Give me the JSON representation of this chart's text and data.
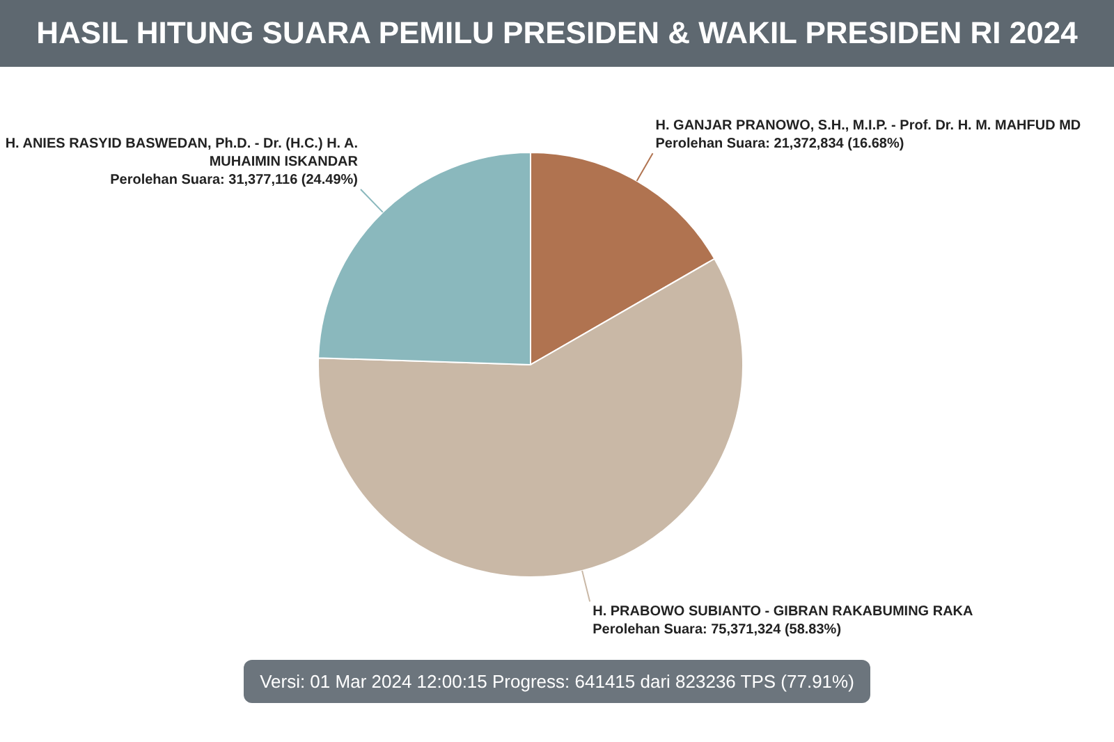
{
  "chart_data": {
    "type": "pie",
    "title": "HASIL HITUNG SUARA PEMILU PRESIDEN & WAKIL PRESIDEN RI 2024",
    "categories": [
      "H. GANJAR PRANOWO, S.H., M.I.P. - Prof. Dr. H. M. MAHFUD MD",
      "H. PRABOWO SUBIANTO - GIBRAN RAKABUMING RAKA",
      "H. ANIES RASYID BASWEDAN, Ph.D. - Dr. (H.C.) H. A. MUHAIMIN ISKANDAR"
    ],
    "values": [
      21372834,
      75371324,
      31377116
    ],
    "colors": [
      "#b07350",
      "#c9b8a6",
      "#8ab8bd"
    ],
    "value_labels": [
      "Perolehan Suara: 21,372,834 (16.68%)",
      "Perolehan Suara: 75,371,324 (58.83%)",
      "Perolehan Suara: 31,377,116 (24.49%)"
    ],
    "annotations": [
      "Versi: 01 Mar 2024 12:00:15 Progress: 641415 dari 823236 TPS (77.91%)"
    ]
  }
}
